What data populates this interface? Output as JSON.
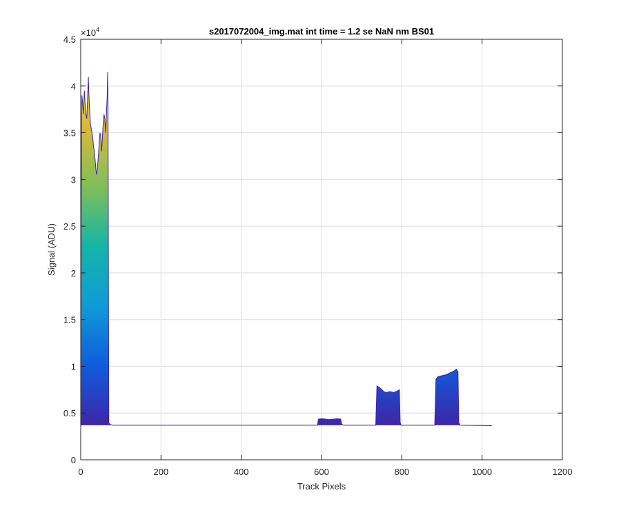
{
  "chart_data": {
    "type": "area",
    "title": "s2017072004_img.mat int time = 1.2 se  NaN nm BS01",
    "xlabel": "Track Pixels",
    "ylabel": "Signal (ADU)",
    "xlim": [
      0,
      1200
    ],
    "ylim": [
      0,
      45000
    ],
    "xticks": [
      0,
      200,
      400,
      600,
      800,
      1000,
      1200
    ],
    "xtick_labels": [
      "0",
      "200",
      "400",
      "600",
      "800",
      "1000",
      "1200"
    ],
    "yticks": [
      0,
      5000,
      10000,
      15000,
      20000,
      25000,
      30000,
      35000,
      40000,
      45000
    ],
    "ytick_labels": [
      "0",
      "0.5",
      "1",
      "1.5",
      "2",
      "2.5",
      "3",
      "3.5",
      "4",
      "4.5"
    ],
    "y_exponent": "10",
    "y_exponent_power": "4",
    "grid": true,
    "baseline": 3700,
    "colormap": [
      "#3e26a8",
      "#0f5cdd",
      "#0f9bd6",
      "#15b4a8",
      "#7fbf58",
      "#d9b93a",
      "#fbe015"
    ],
    "series": [
      {
        "values": [
          [
            0,
            3700
          ],
          [
            1,
            26000
          ],
          [
            3,
            39000
          ],
          [
            5,
            38000
          ],
          [
            7,
            37000
          ],
          [
            9,
            39500
          ],
          [
            11,
            38000
          ],
          [
            13,
            37000
          ],
          [
            15,
            36500
          ],
          [
            17,
            38500
          ],
          [
            19,
            41000
          ],
          [
            20,
            39500
          ],
          [
            22,
            37500
          ],
          [
            24,
            36000
          ],
          [
            26,
            35500
          ],
          [
            28,
            35000
          ],
          [
            30,
            34500
          ],
          [
            32,
            33500
          ],
          [
            34,
            33000
          ],
          [
            36,
            32000
          ],
          [
            38,
            31000
          ],
          [
            40,
            30500
          ],
          [
            42,
            31500
          ],
          [
            44,
            32500
          ],
          [
            46,
            34000
          ],
          [
            48,
            35000
          ],
          [
            50,
            34500
          ],
          [
            52,
            33000
          ],
          [
            54,
            34500
          ],
          [
            56,
            36000
          ],
          [
            58,
            37000
          ],
          [
            60,
            36500
          ],
          [
            62,
            35000
          ],
          [
            64,
            37000
          ],
          [
            66,
            39000
          ],
          [
            67,
            41500
          ],
          [
            68,
            38000
          ],
          [
            70,
            4000
          ],
          [
            72,
            3800
          ],
          [
            80,
            3700
          ],
          [
            590,
            3700
          ],
          [
            592,
            4350
          ],
          [
            600,
            4400
          ],
          [
            610,
            4350
          ],
          [
            620,
            4300
          ],
          [
            630,
            4350
          ],
          [
            640,
            4400
          ],
          [
            648,
            4350
          ],
          [
            650,
            3800
          ],
          [
            655,
            3700
          ],
          [
            735,
            3700
          ],
          [
            738,
            7900
          ],
          [
            742,
            7800
          ],
          [
            748,
            7600
          ],
          [
            755,
            7300
          ],
          [
            762,
            7200
          ],
          [
            770,
            7300
          ],
          [
            780,
            7200
          ],
          [
            790,
            7400
          ],
          [
            794,
            7500
          ],
          [
            796,
            4000
          ],
          [
            798,
            3700
          ],
          [
            882,
            3700
          ],
          [
            885,
            8600
          ],
          [
            890,
            8900
          ],
          [
            900,
            9000
          ],
          [
            910,
            9100
          ],
          [
            920,
            9300
          ],
          [
            930,
            9500
          ],
          [
            936,
            9700
          ],
          [
            940,
            9400
          ],
          [
            942,
            4000
          ],
          [
            945,
            3700
          ],
          [
            1024,
            3650
          ]
        ]
      }
    ]
  }
}
